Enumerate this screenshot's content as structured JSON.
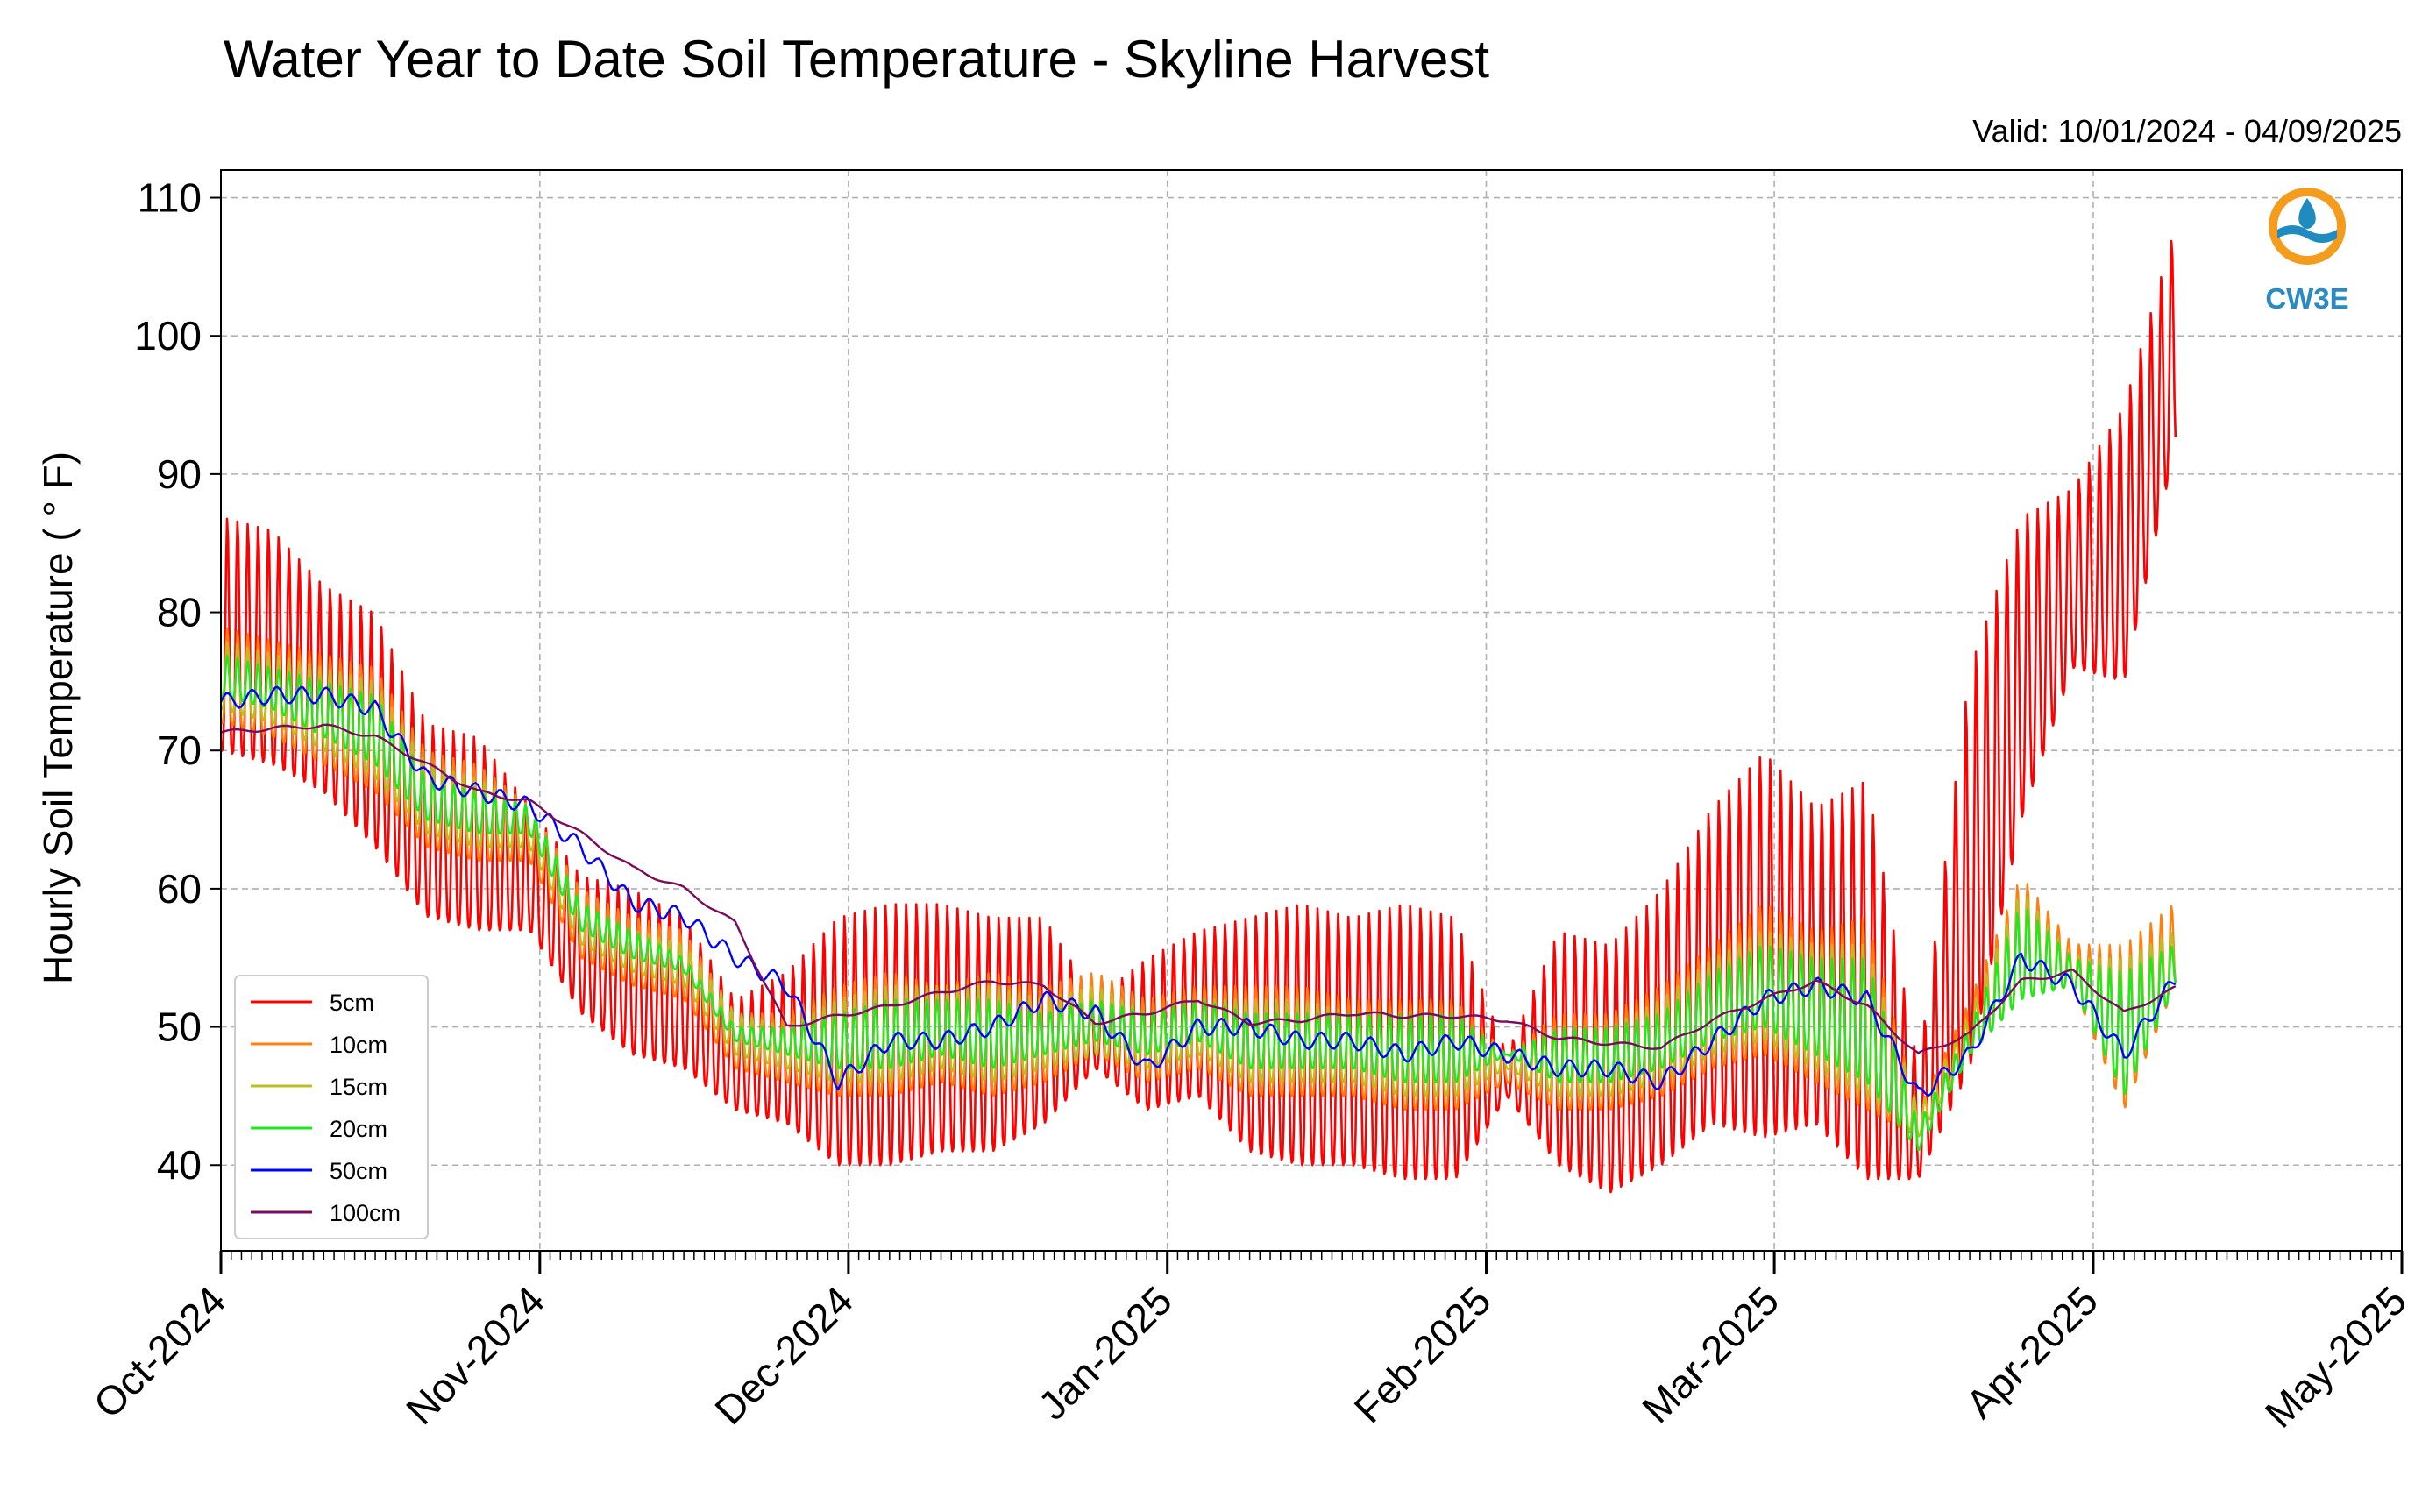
{
  "chart_data": {
    "type": "line",
    "title": "Water Year to Date Soil Temperature - Skyline Harvest",
    "subtitle": "Valid: 10/01/2024 - 04/09/2025",
    "xlabel": "",
    "ylabel": "Hourly Soil Temperature ( ° F)",
    "x_range": [
      "2024-10-01",
      "2025-05-01"
    ],
    "ylim": [
      33.8,
      112
    ],
    "y_ticks": [
      40,
      50,
      60,
      70,
      80,
      90,
      100,
      110
    ],
    "x_ticks": [
      {
        "date": "2024-10-01",
        "label": "Oct-2024"
      },
      {
        "date": "2024-11-01",
        "label": "Nov-2024"
      },
      {
        "date": "2024-12-01",
        "label": "Dec-2024"
      },
      {
        "date": "2025-01-01",
        "label": "Jan-2025"
      },
      {
        "date": "2025-02-01",
        "label": "Feb-2025"
      },
      {
        "date": "2025-03-01",
        "label": "Mar-2025"
      },
      {
        "date": "2025-04-01",
        "label": "Apr-2025"
      },
      {
        "date": "2025-05-01",
        "label": "May-2025"
      }
    ],
    "grid": true,
    "legend_position": "lower-left",
    "series": [
      {
        "name": "5cm",
        "color": "#ff0000",
        "dates": [
          "2024-10-01",
          "2024-10-06",
          "2024-10-11",
          "2024-10-16",
          "2024-10-21",
          "2024-10-26",
          "2024-10-31",
          "2024-11-05",
          "2024-11-10",
          "2024-11-15",
          "2024-11-20",
          "2024-11-25",
          "2024-11-30",
          "2024-12-05",
          "2024-12-10",
          "2024-12-15",
          "2024-12-20",
          "2024-12-25",
          "2024-12-30",
          "2025-01-04",
          "2025-01-09",
          "2025-01-14",
          "2025-01-19",
          "2025-01-24",
          "2025-01-29",
          "2025-02-03",
          "2025-02-08",
          "2025-02-13",
          "2025-02-18",
          "2025-02-23",
          "2025-02-28",
          "2025-03-05",
          "2025-03-10",
          "2025-03-15",
          "2025-03-20",
          "2025-03-25",
          "2025-03-30",
          "2025-04-04",
          "2025-04-09"
        ],
        "min": [
          70,
          69,
          67,
          63,
          58,
          57,
          57,
          51,
          48,
          47,
          44,
          43,
          40,
          40,
          41,
          41,
          43,
          47,
          44,
          45,
          41,
          40,
          40,
          39,
          39,
          45,
          40,
          38,
          40,
          43,
          42,
          43,
          39,
          39,
          47,
          65,
          76,
          75,
          92
        ],
        "max": [
          87,
          86,
          82,
          80,
          72,
          71,
          66,
          61,
          60,
          58,
          52,
          54,
          58,
          59,
          59,
          58,
          58,
          52,
          55,
          57,
          58,
          59,
          58,
          59,
          58,
          48,
          57,
          56,
          60,
          66,
          70,
          66,
          68,
          47,
          76,
          87,
          89,
          95,
          108
        ]
      },
      {
        "name": "10cm",
        "color": "#ff7f0e",
        "dates": [
          "2024-10-01",
          "2024-10-06",
          "2024-10-11",
          "2024-10-16",
          "2024-10-21",
          "2024-10-26",
          "2024-10-31",
          "2024-11-05",
          "2024-11-10",
          "2024-11-15",
          "2024-11-20",
          "2024-11-25",
          "2024-11-30",
          "2024-12-05",
          "2024-12-10",
          "2024-12-15",
          "2024-12-20",
          "2024-12-25",
          "2024-12-30",
          "2025-01-04",
          "2025-01-09",
          "2025-01-14",
          "2025-01-19",
          "2025-01-24",
          "2025-01-29",
          "2025-02-03",
          "2025-02-08",
          "2025-02-13",
          "2025-02-18",
          "2025-02-23",
          "2025-02-28",
          "2025-03-05",
          "2025-03-10",
          "2025-03-15",
          "2025-03-20",
          "2025-03-25",
          "2025-03-30",
          "2025-04-04",
          "2025-04-09"
        ],
        "min": [
          72,
          71,
          69,
          67,
          63,
          62,
          62,
          55,
          53,
          52,
          47,
          46,
          45,
          45,
          46,
          45,
          46,
          48,
          46,
          47,
          45,
          45,
          45,
          44,
          44,
          46,
          44,
          44,
          45,
          47,
          48,
          46,
          44,
          42,
          48,
          52,
          53,
          44,
          53
        ],
        "max": [
          79,
          78,
          77,
          76,
          70,
          69,
          66,
          60,
          58,
          57,
          51,
          51,
          53,
          54,
          53,
          54,
          53,
          54,
          52,
          53,
          53,
          53,
          52,
          52,
          52,
          48,
          51,
          51,
          53,
          56,
          59,
          57,
          58,
          44,
          52,
          61,
          56,
          56,
          59
        ]
      },
      {
        "name": "15cm",
        "color": "#bcbd22",
        "dates": [
          "2024-10-01",
          "2024-10-06",
          "2024-10-11",
          "2024-10-16",
          "2024-10-21",
          "2024-10-26",
          "2024-10-31",
          "2024-11-05",
          "2024-11-10",
          "2024-11-15",
          "2024-11-20",
          "2024-11-25",
          "2024-11-30",
          "2024-12-05",
          "2024-12-10",
          "2024-12-15",
          "2024-12-20",
          "2024-12-25",
          "2024-12-30",
          "2025-01-04",
          "2025-01-09",
          "2025-01-14",
          "2025-01-19",
          "2025-01-24",
          "2025-01-29",
          "2025-02-03",
          "2025-02-08",
          "2025-02-13",
          "2025-02-18",
          "2025-02-23",
          "2025-02-28",
          "2025-03-05",
          "2025-03-10",
          "2025-03-15",
          "2025-03-20",
          "2025-03-25",
          "2025-03-30",
          "2025-04-04",
          "2025-04-09"
        ],
        "min": [
          73,
          72,
          70,
          68,
          64,
          63,
          63,
          56,
          54,
          53,
          48,
          47,
          46,
          46,
          47,
          46,
          47,
          48,
          47,
          48,
          46,
          46,
          46,
          45,
          45,
          47,
          45,
          45,
          46,
          48,
          49,
          47,
          45,
          42,
          48,
          52,
          53,
          45,
          53
        ],
        "max": [
          78,
          77,
          76,
          75,
          69,
          68,
          66,
          59,
          57,
          56,
          51,
          50,
          52,
          53,
          53,
          53,
          52,
          53,
          51,
          52,
          52,
          52,
          51,
          51,
          51,
          48,
          50,
          50,
          52,
          55,
          57,
          56,
          56,
          44,
          51,
          60,
          55,
          55,
          57
        ]
      },
      {
        "name": "20cm",
        "color": "#1ee81e",
        "dates": [
          "2024-10-01",
          "2024-10-06",
          "2024-10-11",
          "2024-10-16",
          "2024-10-21",
          "2024-10-26",
          "2024-10-31",
          "2024-11-05",
          "2024-11-10",
          "2024-11-15",
          "2024-11-20",
          "2024-11-25",
          "2024-11-30",
          "2024-12-05",
          "2024-12-10",
          "2024-12-15",
          "2024-12-20",
          "2024-12-25",
          "2024-12-30",
          "2025-01-04",
          "2025-01-09",
          "2025-01-14",
          "2025-01-19",
          "2025-01-24",
          "2025-01-29",
          "2025-02-03",
          "2025-02-08",
          "2025-02-13",
          "2025-02-18",
          "2025-02-23",
          "2025-02-28",
          "2025-03-05",
          "2025-03-10",
          "2025-03-15",
          "2025-03-20",
          "2025-03-25",
          "2025-03-30",
          "2025-04-04",
          "2025-04-09"
        ],
        "min": [
          74,
          73,
          71,
          69,
          65,
          64,
          64,
          57,
          55,
          54,
          49,
          48,
          47,
          47,
          48,
          47,
          48,
          49,
          48,
          49,
          47,
          47,
          47,
          46,
          46,
          48,
          46,
          46,
          47,
          49,
          50,
          48,
          46,
          41,
          48,
          52,
          53,
          45,
          53
        ],
        "max": [
          77,
          76,
          75,
          74,
          68,
          67,
          66,
          59,
          57,
          55,
          50,
          50,
          51,
          52,
          52,
          52,
          51,
          52,
          51,
          52,
          51,
          51,
          51,
          51,
          51,
          48,
          50,
          50,
          51,
          54,
          56,
          55,
          55,
          43,
          50,
          59,
          55,
          54,
          56
        ]
      },
      {
        "name": "50cm",
        "color": "#0000ff",
        "dates": [
          "2024-10-01",
          "2024-10-06",
          "2024-10-11",
          "2024-10-16",
          "2024-10-21",
          "2024-10-26",
          "2024-10-31",
          "2024-11-05",
          "2024-11-10",
          "2024-11-15",
          "2024-11-20",
          "2024-11-25",
          "2024-11-30",
          "2024-12-05",
          "2024-12-10",
          "2024-12-15",
          "2024-12-20",
          "2024-12-25",
          "2024-12-30",
          "2025-01-04",
          "2025-01-09",
          "2025-01-14",
          "2025-01-19",
          "2025-01-24",
          "2025-01-29",
          "2025-02-03",
          "2025-02-08",
          "2025-02-13",
          "2025-02-18",
          "2025-02-23",
          "2025-02-28",
          "2025-03-05",
          "2025-03-10",
          "2025-03-15",
          "2025-03-20",
          "2025-03-25",
          "2025-03-30",
          "2025-04-04",
          "2025-04-09"
        ],
        "mean": [
          73.5,
          74,
          74,
          73,
          68,
          67,
          66,
          63,
          59,
          58,
          55,
          53,
          46,
          49,
          49,
          50,
          52,
          51,
          47,
          50,
          50,
          49,
          49,
          48,
          49,
          48,
          47,
          47,
          46,
          49,
          52,
          53,
          52,
          45,
          48,
          55,
          53,
          48,
          53.5
        ]
      },
      {
        "name": "100cm",
        "color": "#7b0c5c",
        "dates": [
          "2024-10-01",
          "2024-10-06",
          "2024-10-11",
          "2024-10-16",
          "2024-10-21",
          "2024-10-26",
          "2024-10-31",
          "2024-11-05",
          "2024-11-10",
          "2024-11-15",
          "2024-11-20",
          "2024-11-25",
          "2024-11-30",
          "2024-12-05",
          "2024-12-10",
          "2024-12-15",
          "2024-12-20",
          "2024-12-25",
          "2024-12-30",
          "2025-01-04",
          "2025-01-09",
          "2025-01-14",
          "2025-01-19",
          "2025-01-24",
          "2025-01-29",
          "2025-02-03",
          "2025-02-08",
          "2025-02-13",
          "2025-02-18",
          "2025-02-23",
          "2025-02-28",
          "2025-03-05",
          "2025-03-10",
          "2025-03-15",
          "2025-03-20",
          "2025-03-25",
          "2025-03-30",
          "2025-04-04",
          "2025-04-09"
        ],
        "mean": [
          71.3,
          71.6,
          71.8,
          71,
          69,
          67,
          66.3,
          64,
          61.5,
          60,
          57.5,
          50,
          50.8,
          51.5,
          52.5,
          53.3,
          53,
          50.3,
          51,
          52,
          50.3,
          50.5,
          51,
          50.8,
          50.8,
          50.5,
          49.2,
          48.8,
          48.5,
          50.5,
          52,
          53.3,
          51.5,
          48,
          49.5,
          53.3,
          54,
          51,
          52.8
        ]
      }
    ]
  },
  "logo": {
    "text": "CW3E",
    "color_ring": "#f39c1e",
    "color_wave": "#1f8bbf",
    "color_text": "#2a8bc4"
  }
}
